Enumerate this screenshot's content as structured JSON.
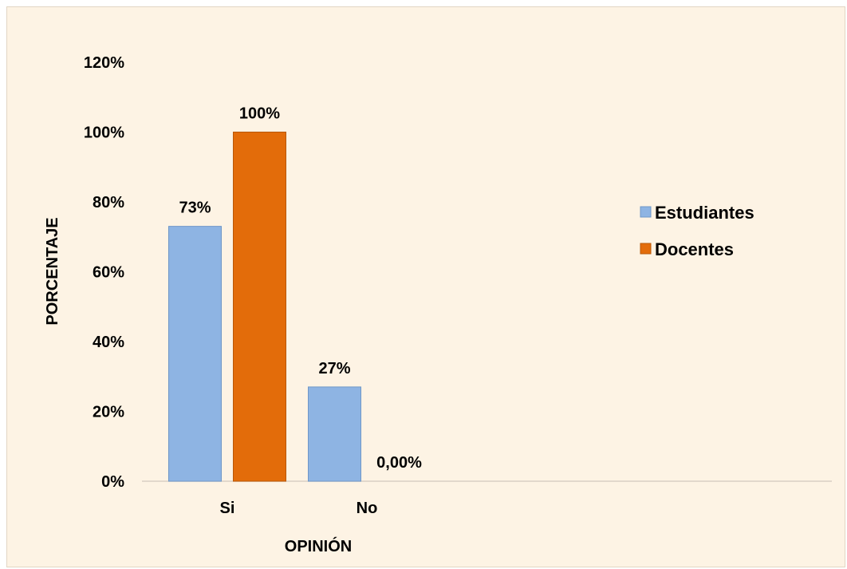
{
  "chart_data": {
    "type": "bar",
    "categories": [
      "Si",
      "No"
    ],
    "series": [
      {
        "name": "Estudiantes",
        "values": [
          73,
          27
        ],
        "data_labels": [
          "73%",
          "27%"
        ],
        "color": "#8eb4e3",
        "border": "#6f97c8"
      },
      {
        "name": "Docentes",
        "values": [
          100,
          0
        ],
        "data_labels": [
          "100%",
          "0,00%"
        ],
        "color": "#e36c0a",
        "border": "#b85808"
      }
    ],
    "title": "",
    "xlabel": "OPINIÓN",
    "ylabel": "PORCENTAJE",
    "ylim": [
      0,
      120
    ],
    "yticks": [
      0,
      20,
      40,
      60,
      80,
      100,
      120
    ],
    "ytick_labels": [
      "0%",
      "20%",
      "40%",
      "60%",
      "80%",
      "100%",
      "120%"
    ],
    "grid": false,
    "legend_position": "right",
    "background": "#fdf3e4"
  }
}
